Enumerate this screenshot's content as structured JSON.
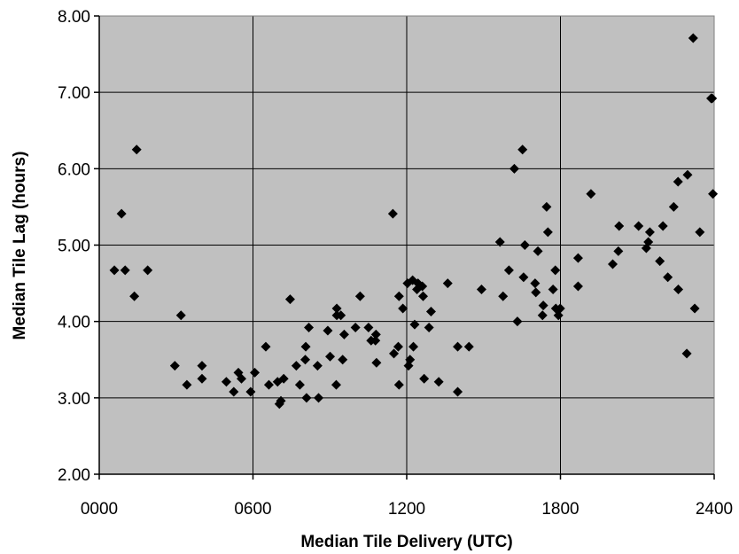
{
  "chart_data": {
    "type": "scatter",
    "title": "",
    "xlabel": "Median Tile Delivery (UTC)",
    "ylabel": "Median Tile Lag (hours)",
    "xlim": [
      0,
      2400
    ],
    "ylim": [
      2,
      8
    ],
    "x_ticks": [
      0,
      600,
      1200,
      1800,
      2400
    ],
    "x_tick_labels": [
      "0000",
      "0600",
      "1200",
      "1800",
      "2400"
    ],
    "y_ticks": [
      2,
      3,
      4,
      5,
      6,
      7,
      8
    ],
    "y_tick_labels": [
      "2.00",
      "3.00",
      "4.00",
      "5.00",
      "6.00",
      "7.00",
      "8.00"
    ],
    "grid": true,
    "legend": "none",
    "plot_background": "#c0c0c0",
    "marker": "diamond",
    "marker_color": "#000000",
    "points": [
      {
        "x": 59,
        "y": 4.67
      },
      {
        "x": 87,
        "y": 5.41
      },
      {
        "x": 101,
        "y": 4.67
      },
      {
        "x": 137,
        "y": 4.33
      },
      {
        "x": 146,
        "y": 6.25
      },
      {
        "x": 189,
        "y": 4.67
      },
      {
        "x": 295,
        "y": 3.42
      },
      {
        "x": 319,
        "y": 4.08
      },
      {
        "x": 342,
        "y": 3.17
      },
      {
        "x": 401,
        "y": 3.42
      },
      {
        "x": 401,
        "y": 3.25
      },
      {
        "x": 496,
        "y": 3.21
      },
      {
        "x": 525,
        "y": 3.08
      },
      {
        "x": 543,
        "y": 3.33
      },
      {
        "x": 555,
        "y": 3.25
      },
      {
        "x": 591,
        "y": 3.08
      },
      {
        "x": 607,
        "y": 3.33
      },
      {
        "x": 650,
        "y": 3.67
      },
      {
        "x": 662,
        "y": 3.17
      },
      {
        "x": 696,
        "y": 3.21
      },
      {
        "x": 703,
        "y": 2.92
      },
      {
        "x": 709,
        "y": 2.96
      },
      {
        "x": 720,
        "y": 3.25
      },
      {
        "x": 745,
        "y": 4.29
      },
      {
        "x": 769,
        "y": 3.42
      },
      {
        "x": 783,
        "y": 3.17
      },
      {
        "x": 804,
        "y": 3.5
      },
      {
        "x": 806,
        "y": 3.67
      },
      {
        "x": 809,
        "y": 3.0
      },
      {
        "x": 818,
        "y": 3.92
      },
      {
        "x": 852,
        "y": 3.42
      },
      {
        "x": 856,
        "y": 3.0
      },
      {
        "x": 892,
        "y": 3.88
      },
      {
        "x": 901,
        "y": 3.54
      },
      {
        "x": 925,
        "y": 3.17
      },
      {
        "x": 927,
        "y": 4.17
      },
      {
        "x": 927,
        "y": 4.08
      },
      {
        "x": 943,
        "y": 4.08
      },
      {
        "x": 950,
        "y": 3.5
      },
      {
        "x": 956,
        "y": 3.83
      },
      {
        "x": 1000,
        "y": 3.92
      },
      {
        "x": 1018,
        "y": 4.33
      },
      {
        "x": 1051,
        "y": 3.92
      },
      {
        "x": 1061,
        "y": 3.75
      },
      {
        "x": 1078,
        "y": 3.75
      },
      {
        "x": 1080,
        "y": 3.83
      },
      {
        "x": 1082,
        "y": 3.46
      },
      {
        "x": 1146,
        "y": 5.41
      },
      {
        "x": 1150,
        "y": 3.58
      },
      {
        "x": 1167,
        "y": 3.67
      },
      {
        "x": 1170,
        "y": 4.33
      },
      {
        "x": 1170,
        "y": 3.17
      },
      {
        "x": 1185,
        "y": 4.17
      },
      {
        "x": 1203,
        "y": 4.5
      },
      {
        "x": 1207,
        "y": 3.42
      },
      {
        "x": 1213,
        "y": 3.5
      },
      {
        "x": 1223,
        "y": 4.54
      },
      {
        "x": 1226,
        "y": 3.67
      },
      {
        "x": 1231,
        "y": 3.96
      },
      {
        "x": 1240,
        "y": 4.42
      },
      {
        "x": 1244,
        "y": 4.5
      },
      {
        "x": 1261,
        "y": 4.46
      },
      {
        "x": 1264,
        "y": 4.33
      },
      {
        "x": 1268,
        "y": 3.25
      },
      {
        "x": 1287,
        "y": 3.92
      },
      {
        "x": 1295,
        "y": 4.13
      },
      {
        "x": 1325,
        "y": 3.21
      },
      {
        "x": 1360,
        "y": 4.5
      },
      {
        "x": 1399,
        "y": 3.67
      },
      {
        "x": 1399,
        "y": 3.08
      },
      {
        "x": 1443,
        "y": 3.67
      },
      {
        "x": 1492,
        "y": 4.42
      },
      {
        "x": 1564,
        "y": 5.04
      },
      {
        "x": 1576,
        "y": 4.33
      },
      {
        "x": 1599,
        "y": 4.67
      },
      {
        "x": 1620,
        "y": 6.0
      },
      {
        "x": 1632,
        "y": 4.0
      },
      {
        "x": 1652,
        "y": 6.25
      },
      {
        "x": 1656,
        "y": 4.58
      },
      {
        "x": 1661,
        "y": 5.0
      },
      {
        "x": 1701,
        "y": 4.5
      },
      {
        "x": 1704,
        "y": 4.38
      },
      {
        "x": 1712,
        "y": 4.92
      },
      {
        "x": 1730,
        "y": 4.08
      },
      {
        "x": 1733,
        "y": 4.21
      },
      {
        "x": 1746,
        "y": 5.5
      },
      {
        "x": 1751,
        "y": 5.17
      },
      {
        "x": 1771,
        "y": 4.42
      },
      {
        "x": 1780,
        "y": 4.67
      },
      {
        "x": 1782,
        "y": 4.17
      },
      {
        "x": 1792,
        "y": 4.08
      },
      {
        "x": 1799,
        "y": 4.17
      },
      {
        "x": 1869,
        "y": 4.83
      },
      {
        "x": 1869,
        "y": 4.46
      },
      {
        "x": 1919,
        "y": 5.67
      },
      {
        "x": 2004,
        "y": 4.75
      },
      {
        "x": 2026,
        "y": 4.92
      },
      {
        "x": 2029,
        "y": 5.25
      },
      {
        "x": 2105,
        "y": 5.25
      },
      {
        "x": 2135,
        "y": 4.96
      },
      {
        "x": 2143,
        "y": 5.04
      },
      {
        "x": 2149,
        "y": 5.17
      },
      {
        "x": 2188,
        "y": 4.79
      },
      {
        "x": 2200,
        "y": 5.25
      },
      {
        "x": 2219,
        "y": 4.58
      },
      {
        "x": 2242,
        "y": 5.5
      },
      {
        "x": 2259,
        "y": 5.83
      },
      {
        "x": 2260,
        "y": 4.42
      },
      {
        "x": 2293,
        "y": 3.58
      },
      {
        "x": 2296,
        "y": 5.92
      },
      {
        "x": 2318,
        "y": 7.71
      },
      {
        "x": 2324,
        "y": 4.17
      },
      {
        "x": 2344,
        "y": 5.17
      },
      {
        "x": 2388,
        "y": 6.92
      },
      {
        "x": 2392,
        "y": 6.92
      },
      {
        "x": 2395,
        "y": 5.67
      }
    ]
  }
}
